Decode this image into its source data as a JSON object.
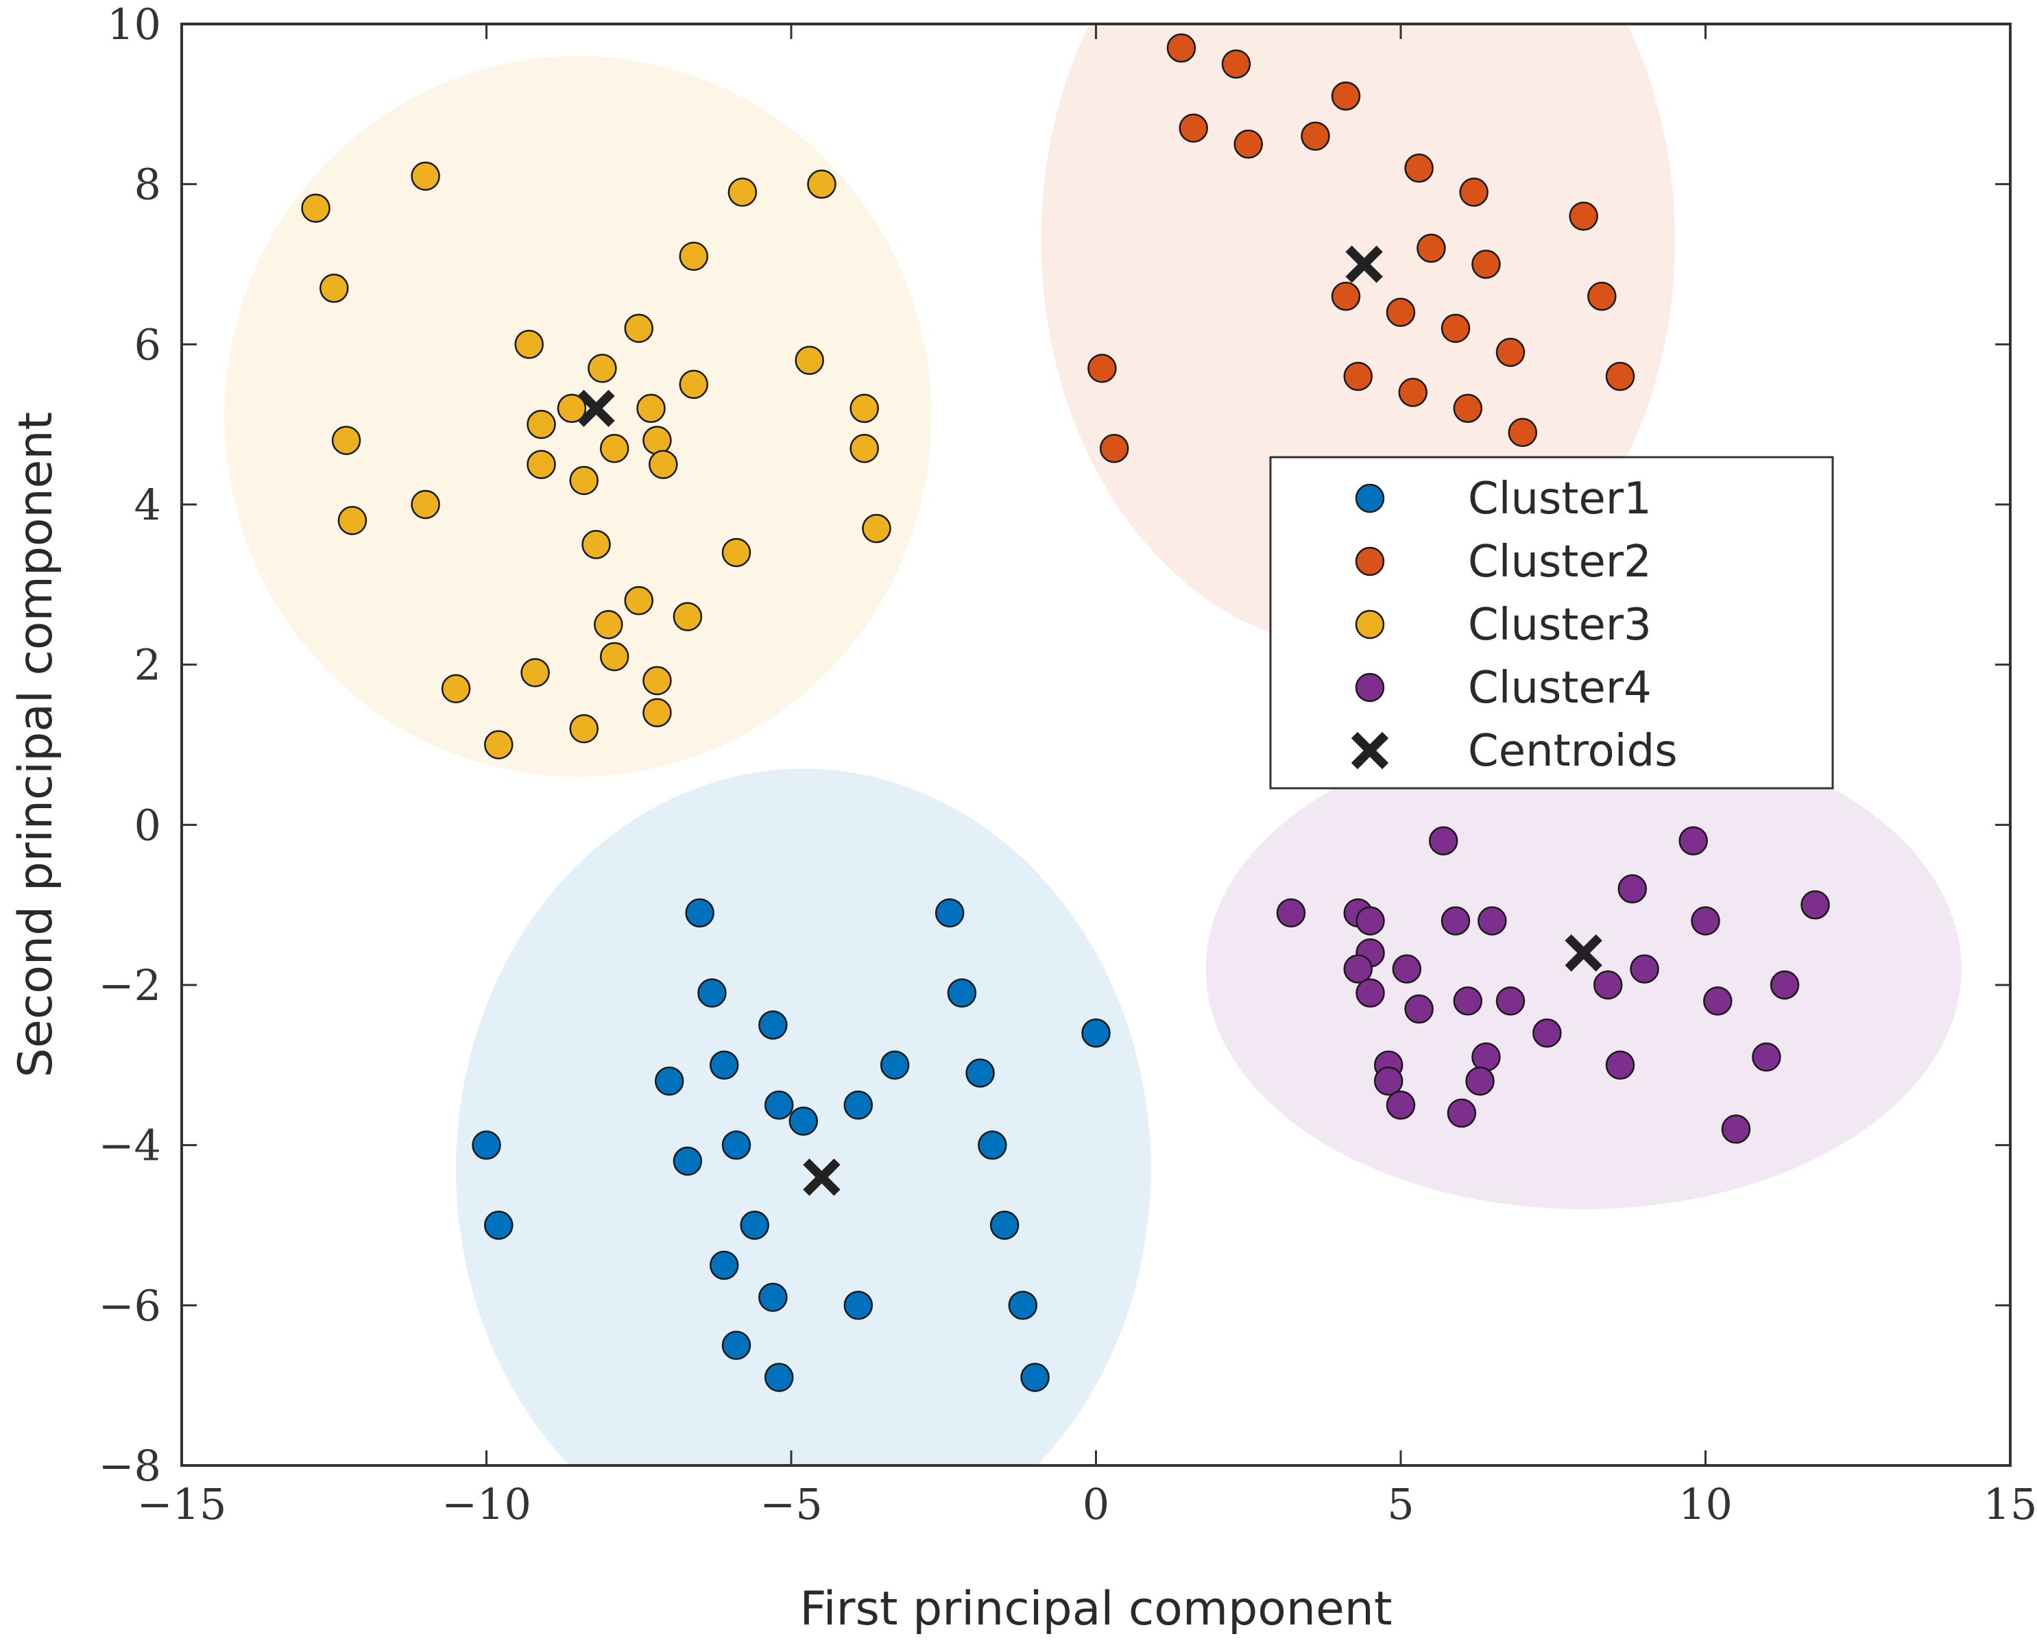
{
  "chart_data": {
    "type": "scatter",
    "title": "",
    "xlabel": "First principal component",
    "ylabel": "Second principal component",
    "xlim": [
      -15,
      15
    ],
    "ylim": [
      -8,
      10
    ],
    "xticks": [
      -15,
      -10,
      -5,
      0,
      5,
      10,
      15
    ],
    "yticks": [
      -8,
      -6,
      -4,
      -2,
      0,
      2,
      4,
      6,
      8,
      10
    ],
    "xtick_labels": [
      "−15",
      "−10",
      "−5",
      "0",
      "5",
      "10",
      "15"
    ],
    "ytick_labels": [
      "−8",
      "−6",
      "−4",
      "−2",
      "0",
      "2",
      "4",
      "6",
      "8",
      "10"
    ],
    "grid": false,
    "legend_position": "center-right",
    "series": [
      {
        "name": "Cluster1",
        "color": "#0072BD",
        "region": {
          "cx": -4.8,
          "cy": -4.3,
          "rx": 5.7,
          "ry": 5.0,
          "color": "#0072BD"
        },
        "points": [
          [
            -6.5,
            -1.1
          ],
          [
            -2.4,
            -1.1
          ],
          [
            -6.3,
            -2.1
          ],
          [
            -2.2,
            -2.1
          ],
          [
            -5.3,
            -2.5
          ],
          [
            0.0,
            -2.6
          ],
          [
            -6.1,
            -3.0
          ],
          [
            -3.3,
            -3.0
          ],
          [
            -1.9,
            -3.1
          ],
          [
            -7.0,
            -3.2
          ],
          [
            -5.2,
            -3.5
          ],
          [
            -3.9,
            -3.5
          ],
          [
            -4.8,
            -3.7
          ],
          [
            -5.9,
            -4.0
          ],
          [
            -1.7,
            -4.0
          ],
          [
            -10.0,
            -4.0
          ],
          [
            -6.7,
            -4.2
          ],
          [
            -9.8,
            -5.0
          ],
          [
            -5.6,
            -5.0
          ],
          [
            -1.5,
            -5.0
          ],
          [
            -6.1,
            -5.5
          ],
          [
            -5.3,
            -5.9
          ],
          [
            -3.9,
            -6.0
          ],
          [
            -1.2,
            -6.0
          ],
          [
            -5.9,
            -6.5
          ],
          [
            -5.2,
            -6.9
          ],
          [
            -1.0,
            -6.9
          ]
        ]
      },
      {
        "name": "Cluster2",
        "color": "#D95319",
        "region": {
          "cx": 4.3,
          "cy": 7.3,
          "rx": 5.2,
          "ry": 5.1,
          "color": "#D95319"
        },
        "points": [
          [
            1.4,
            9.7
          ],
          [
            2.3,
            9.5
          ],
          [
            4.1,
            9.1
          ],
          [
            1.6,
            8.7
          ],
          [
            2.5,
            8.5
          ],
          [
            3.6,
            8.6
          ],
          [
            5.3,
            8.2
          ],
          [
            6.2,
            7.9
          ],
          [
            8.0,
            7.6
          ],
          [
            5.5,
            7.2
          ],
          [
            6.4,
            7.0
          ],
          [
            4.1,
            6.6
          ],
          [
            5.0,
            6.4
          ],
          [
            8.3,
            6.6
          ],
          [
            5.9,
            6.2
          ],
          [
            6.8,
            5.9
          ],
          [
            0.1,
            5.7
          ],
          [
            4.3,
            5.6
          ],
          [
            8.6,
            5.6
          ],
          [
            5.2,
            5.4
          ],
          [
            6.1,
            5.2
          ],
          [
            7.0,
            4.9
          ],
          [
            0.3,
            4.7
          ]
        ]
      },
      {
        "name": "Cluster3",
        "color": "#EDB120",
        "region": {
          "cx": -8.5,
          "cy": 5.1,
          "rx": 5.8,
          "ry": 4.5,
          "color": "#EDB120"
        },
        "points": [
          [
            -12.8,
            7.7
          ],
          [
            -11.0,
            8.1
          ],
          [
            -5.8,
            7.9
          ],
          [
            -4.5,
            8.0
          ],
          [
            -12.5,
            6.7
          ],
          [
            -6.6,
            7.1
          ],
          [
            -9.3,
            6.0
          ],
          [
            -7.5,
            6.2
          ],
          [
            -4.7,
            5.8
          ],
          [
            -8.1,
            5.7
          ],
          [
            -6.6,
            5.5
          ],
          [
            -8.6,
            5.2
          ],
          [
            -7.3,
            5.2
          ],
          [
            -3.8,
            5.2
          ],
          [
            -9.1,
            5.0
          ],
          [
            -12.3,
            4.8
          ],
          [
            -7.9,
            4.7
          ],
          [
            -7.2,
            4.8
          ],
          [
            -3.8,
            4.7
          ],
          [
            -9.1,
            4.5
          ],
          [
            -7.1,
            4.5
          ],
          [
            -8.4,
            4.3
          ],
          [
            -12.2,
            3.8
          ],
          [
            -11.0,
            4.0
          ],
          [
            -3.6,
            3.7
          ],
          [
            -8.2,
            3.5
          ],
          [
            -5.9,
            3.4
          ],
          [
            -7.5,
            2.8
          ],
          [
            -8.0,
            2.5
          ],
          [
            -6.7,
            2.6
          ],
          [
            -7.9,
            2.1
          ],
          [
            -9.2,
            1.9
          ],
          [
            -7.2,
            1.8
          ],
          [
            -10.5,
            1.7
          ],
          [
            -8.4,
            1.2
          ],
          [
            -7.2,
            1.4
          ],
          [
            -9.8,
            1.0
          ]
        ]
      },
      {
        "name": "Cluster4",
        "color": "#7E2F8E",
        "region": {
          "cx": 8.0,
          "cy": -1.8,
          "rx": 6.2,
          "ry": 3.0,
          "color": "#7E2F8E"
        },
        "points": [
          [
            5.7,
            -0.2
          ],
          [
            9.8,
            -0.2
          ],
          [
            8.8,
            -0.8
          ],
          [
            3.2,
            -1.1
          ],
          [
            4.3,
            -1.1
          ],
          [
            4.5,
            -1.2
          ],
          [
            5.9,
            -1.2
          ],
          [
            6.5,
            -1.2
          ],
          [
            10.0,
            -1.2
          ],
          [
            11.8,
            -1.0
          ],
          [
            4.5,
            -1.6
          ],
          [
            4.3,
            -1.8
          ],
          [
            5.1,
            -1.8
          ],
          [
            9.0,
            -1.8
          ],
          [
            8.4,
            -2.0
          ],
          [
            11.3,
            -2.0
          ],
          [
            4.5,
            -2.1
          ],
          [
            6.1,
            -2.2
          ],
          [
            6.8,
            -2.2
          ],
          [
            10.2,
            -2.2
          ],
          [
            5.3,
            -2.3
          ],
          [
            7.4,
            -2.6
          ],
          [
            11.0,
            -2.9
          ],
          [
            6.4,
            -2.9
          ],
          [
            4.8,
            -3.0
          ],
          [
            8.6,
            -3.0
          ],
          [
            4.8,
            -3.2
          ],
          [
            6.3,
            -3.2
          ],
          [
            5.0,
            -3.5
          ],
          [
            6.0,
            -3.6
          ],
          [
            10.5,
            -3.8
          ]
        ]
      }
    ],
    "centroids": {
      "name": "Centroids",
      "color": "#222222",
      "points": [
        [
          -4.5,
          -4.4
        ],
        [
          4.4,
          7.0
        ],
        [
          -8.2,
          5.2
        ],
        [
          8.0,
          -1.6
        ]
      ]
    },
    "legend": [
      "Cluster1",
      "Cluster2",
      "Cluster3",
      "Cluster4",
      "Centroids"
    ]
  }
}
